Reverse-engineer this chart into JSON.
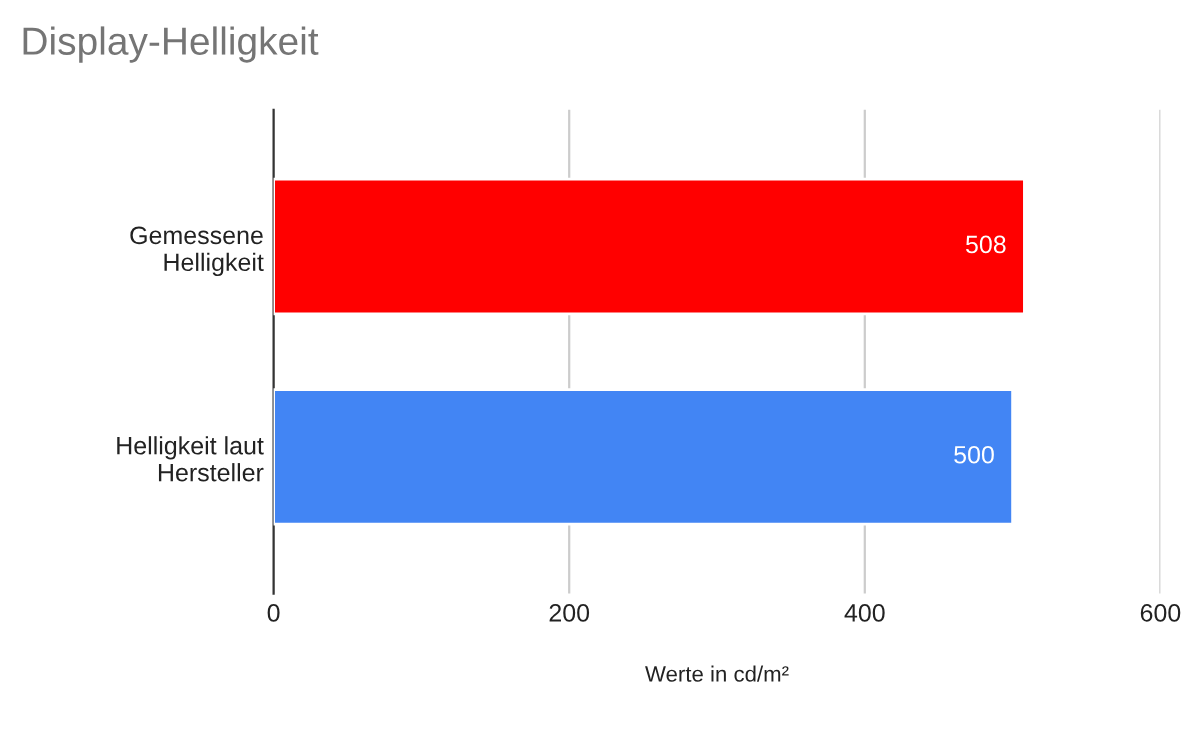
{
  "chart_data": {
    "type": "bar",
    "orientation": "horizontal",
    "title": "Display-Helligkeit",
    "xlabel": "Werte in cd/m²",
    "categories": [
      "Gemessene\nHelligkeit",
      "Helligkeit laut\nHersteller"
    ],
    "values": [
      508,
      500
    ],
    "colors": [
      "#ff0000",
      "#4285f4"
    ],
    "xlim": [
      0,
      600
    ],
    "xticks": [
      0,
      200,
      400,
      600
    ],
    "grid": "x",
    "data_labels": true,
    "legend": false
  }
}
